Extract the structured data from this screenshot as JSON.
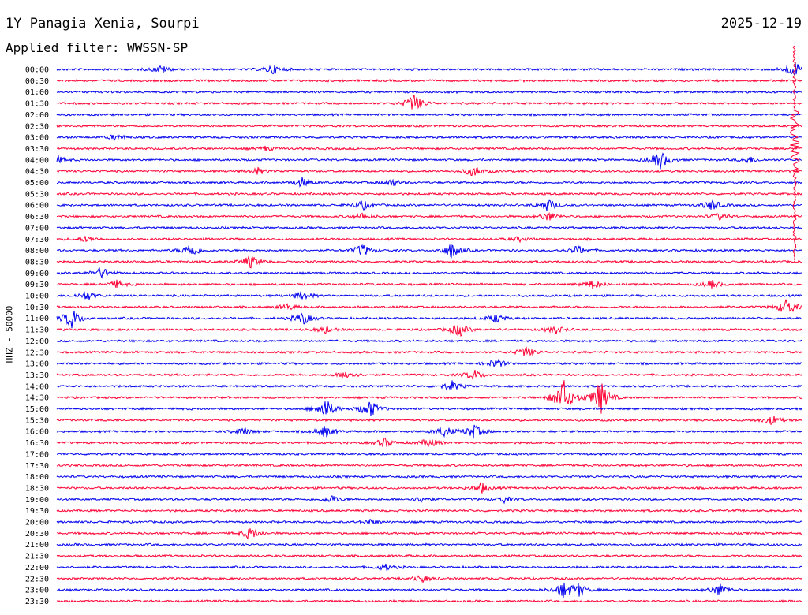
{
  "header": {
    "station": "1Y Panagia Xenia, Sourpi",
    "date": "2025-12-19",
    "filter": "Applied filter: WWSSN-SP"
  },
  "chart_data": {
    "type": "line",
    "chart_kind": "helicorder",
    "title": "1Y Panagia Xenia, Sourpi",
    "subtitle": "Applied filter: WWSSN-SP",
    "ylabel": "HHZ - 50000",
    "xlabel": "",
    "trace_colors": [
      "#0000ee",
      "#ff0033"
    ],
    "grid": false,
    "rows": [
      {
        "label": "00:00",
        "events": [
          {
            "t": 0.14,
            "a": 5
          },
          {
            "t": 0.29,
            "a": 6
          },
          {
            "t": 0.99,
            "a": 10
          }
        ]
      },
      {
        "label": "00:30",
        "events": []
      },
      {
        "label": "01:00",
        "events": []
      },
      {
        "label": "01:30",
        "events": [
          {
            "t": 0.48,
            "a": 12
          }
        ]
      },
      {
        "label": "02:00",
        "events": []
      },
      {
        "label": "02:30",
        "events": []
      },
      {
        "label": "03:00",
        "events": [
          {
            "t": 0.08,
            "a": 4
          }
        ]
      },
      {
        "label": "03:30",
        "events": [
          {
            "t": 0.28,
            "a": 3
          }
        ]
      },
      {
        "label": "04:00",
        "events": [
          {
            "t": 0.0,
            "a": 5
          },
          {
            "t": 0.81,
            "a": 12
          },
          {
            "t": 0.93,
            "a": 4
          }
        ]
      },
      {
        "label": "04:30",
        "events": [
          {
            "t": 0.27,
            "a": 4
          },
          {
            "t": 0.56,
            "a": 7
          }
        ]
      },
      {
        "label": "05:00",
        "events": [
          {
            "t": 0.33,
            "a": 6
          },
          {
            "t": 0.45,
            "a": 5
          }
        ]
      },
      {
        "label": "05:30",
        "events": []
      },
      {
        "label": "06:00",
        "events": [
          {
            "t": 0.41,
            "a": 6
          },
          {
            "t": 0.66,
            "a": 8
          },
          {
            "t": 0.88,
            "a": 7
          }
        ]
      },
      {
        "label": "06:30",
        "events": [
          {
            "t": 0.41,
            "a": 4
          },
          {
            "t": 0.66,
            "a": 6
          },
          {
            "t": 0.89,
            "a": 4
          }
        ]
      },
      {
        "label": "07:00",
        "events": []
      },
      {
        "label": "07:30",
        "events": [
          {
            "t": 0.04,
            "a": 4
          },
          {
            "t": 0.62,
            "a": 3
          }
        ]
      },
      {
        "label": "08:00",
        "events": [
          {
            "t": 0.18,
            "a": 9
          },
          {
            "t": 0.41,
            "a": 8
          },
          {
            "t": 0.53,
            "a": 10
          },
          {
            "t": 0.7,
            "a": 6
          }
        ]
      },
      {
        "label": "08:30",
        "events": [
          {
            "t": 0.26,
            "a": 8
          }
        ]
      },
      {
        "label": "09:00",
        "events": [
          {
            "t": 0.06,
            "a": 7
          }
        ]
      },
      {
        "label": "09:30",
        "events": [
          {
            "t": 0.08,
            "a": 5
          },
          {
            "t": 0.72,
            "a": 6
          },
          {
            "t": 0.88,
            "a": 5
          }
        ]
      },
      {
        "label": "10:00",
        "events": [
          {
            "t": 0.04,
            "a": 6
          },
          {
            "t": 0.33,
            "a": 6
          }
        ]
      },
      {
        "label": "10:30",
        "events": [
          {
            "t": 0.31,
            "a": 4
          },
          {
            "t": 0.98,
            "a": 12
          }
        ]
      },
      {
        "label": "11:00",
        "events": [
          {
            "t": 0.02,
            "a": 14
          },
          {
            "t": 0.33,
            "a": 9
          },
          {
            "t": 0.59,
            "a": 6
          }
        ]
      },
      {
        "label": "11:30",
        "events": [
          {
            "t": 0.36,
            "a": 4
          },
          {
            "t": 0.54,
            "a": 9
          },
          {
            "t": 0.67,
            "a": 5
          }
        ]
      },
      {
        "label": "12:00",
        "events": []
      },
      {
        "label": "12:30",
        "events": [
          {
            "t": 0.63,
            "a": 7
          }
        ]
      },
      {
        "label": "13:00",
        "events": [
          {
            "t": 0.59,
            "a": 6
          }
        ]
      },
      {
        "label": "13:30",
        "events": [
          {
            "t": 0.39,
            "a": 6
          },
          {
            "t": 0.56,
            "a": 7
          }
        ]
      },
      {
        "label": "14:00",
        "events": [
          {
            "t": 0.53,
            "a": 7
          }
        ]
      },
      {
        "label": "14:30",
        "events": [
          {
            "t": 0.68,
            "a": 25
          },
          {
            "t": 0.73,
            "a": 22
          }
        ]
      },
      {
        "label": "15:00",
        "events": [
          {
            "t": 0.36,
            "a": 14
          },
          {
            "t": 0.42,
            "a": 12
          }
        ]
      },
      {
        "label": "15:30",
        "events": [
          {
            "t": 0.96,
            "a": 6
          }
        ]
      },
      {
        "label": "16:00",
        "events": [
          {
            "t": 0.25,
            "a": 5
          },
          {
            "t": 0.36,
            "a": 8
          },
          {
            "t": 0.52,
            "a": 7
          },
          {
            "t": 0.56,
            "a": 9
          }
        ]
      },
      {
        "label": "16:30",
        "events": [
          {
            "t": 0.44,
            "a": 6
          },
          {
            "t": 0.5,
            "a": 6
          }
        ]
      },
      {
        "label": "17:00",
        "events": []
      },
      {
        "label": "17:30",
        "events": []
      },
      {
        "label": "18:00",
        "events": []
      },
      {
        "label": "18:30",
        "events": [
          {
            "t": 0.57,
            "a": 7
          }
        ]
      },
      {
        "label": "19:00",
        "events": [
          {
            "t": 0.37,
            "a": 5
          },
          {
            "t": 0.49,
            "a": 4
          },
          {
            "t": 0.6,
            "a": 4
          }
        ]
      },
      {
        "label": "19:30",
        "events": []
      },
      {
        "label": "20:00",
        "events": [
          {
            "t": 0.42,
            "a": 3
          }
        ]
      },
      {
        "label": "20:30",
        "events": [
          {
            "t": 0.26,
            "a": 8
          }
        ]
      },
      {
        "label": "21:00",
        "events": []
      },
      {
        "label": "21:30",
        "events": []
      },
      {
        "label": "22:00",
        "events": [
          {
            "t": 0.44,
            "a": 4
          }
        ]
      },
      {
        "label": "22:30",
        "events": [
          {
            "t": 0.49,
            "a": 5
          }
        ]
      },
      {
        "label": "23:00",
        "events": [
          {
            "t": 0.68,
            "a": 10
          },
          {
            "t": 0.7,
            "a": 8
          },
          {
            "t": 0.89,
            "a": 8
          }
        ]
      },
      {
        "label": "23:30",
        "events": []
      }
    ]
  }
}
